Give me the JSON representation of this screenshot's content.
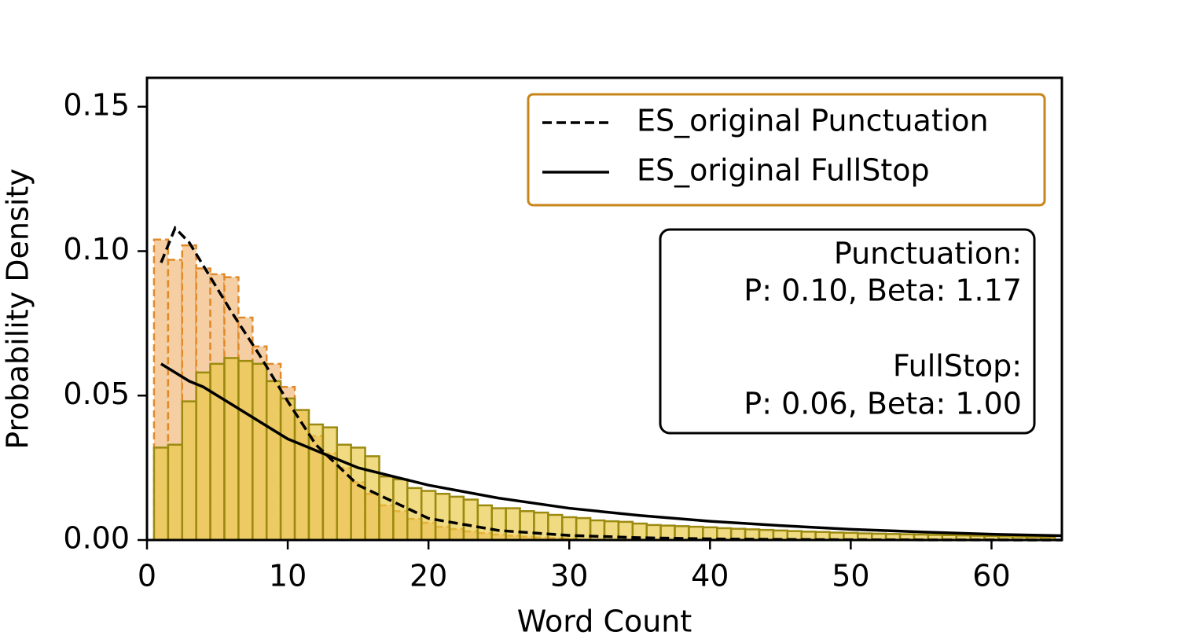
{
  "chart_data": {
    "type": "histogram",
    "xlabel": "Word Count",
    "ylabel": "Probability Density",
    "xlim": [
      0,
      65
    ],
    "ylim": [
      0,
      0.16
    ],
    "xticks": [
      0,
      10,
      20,
      30,
      40,
      50,
      60
    ],
    "yticks": [
      {
        "value": 0,
        "label": "0.00"
      },
      0.05,
      {
        "value": 0.1,
        "label": "0.10"
      },
      0.15
    ],
    "histograms": [
      {
        "color": "#f5cfa3",
        "edgecolor": "#e08a2a",
        "linestyle": "dashed",
        "alpha": 1,
        "bins": [
          0.5,
          1.5,
          2.5,
          3.5,
          4.5,
          5.5,
          6.5,
          7.5,
          8.5,
          9.5,
          10.5,
          11.5,
          12.5,
          13.5,
          14.5,
          15.5,
          16.5,
          17.5,
          18.5,
          19.5,
          20.5,
          21.5,
          22.5,
          23.5,
          24.5,
          25.5,
          26.5,
          27.5,
          28.5,
          29.5,
          30.5
        ],
        "values": [
          0.104,
          0.097,
          0.102,
          0.094,
          0.092,
          0.091,
          0.077,
          0.067,
          0.061,
          0.053,
          0.045,
          0.036,
          0.03,
          0.025,
          0.02,
          0.016,
          0.012,
          0.01,
          0.0073,
          0.006,
          0.0046,
          0.0038,
          0.003,
          0.0024,
          0.0019,
          0.0015,
          0.0012,
          0.0009,
          0.0007,
          0.0005
        ]
      },
      {
        "color": "#e8c840",
        "edgecolor": "#9c8a10",
        "linestyle": "solid",
        "alpha": 0.65,
        "bins": [
          0.5,
          1.5,
          2.5,
          3.5,
          4.5,
          5.5,
          6.5,
          7.5,
          8.5,
          9.5,
          10.5,
          11.5,
          12.5,
          13.5,
          14.5,
          15.5,
          16.5,
          17.5,
          18.5,
          19.5,
          20.5,
          21.5,
          22.5,
          23.5,
          24.5,
          25.5,
          26.5,
          27.5,
          28.5,
          29.5,
          30.5,
          31.5,
          32.5,
          33.5,
          34.5,
          35.5,
          36.5,
          37.5,
          38.5,
          39.5,
          40.5,
          41.5,
          42.5,
          43.5,
          44.5,
          45.5,
          46.5,
          47.5,
          48.5,
          49.5,
          50.5,
          51.5,
          52.5,
          53.5,
          54.5,
          55.5,
          56.5,
          57.5,
          58.5,
          59.5,
          60.5,
          61.5,
          62.5,
          63.5,
          64.5
        ],
        "values": [
          0.032,
          0.033,
          0.048,
          0.058,
          0.061,
          0.063,
          0.062,
          0.061,
          0.055,
          0.049,
          0.045,
          0.04,
          0.039,
          0.033,
          0.032,
          0.029,
          0.022,
          0.021,
          0.018,
          0.017,
          0.016,
          0.015,
          0.014,
          0.012,
          0.011,
          0.011,
          0.01,
          0.0095,
          0.0087,
          0.0079,
          0.0076,
          0.0068,
          0.0065,
          0.0063,
          0.0057,
          0.0052,
          0.005,
          0.0048,
          0.0046,
          0.0044,
          0.0041,
          0.0039,
          0.0037,
          0.0035,
          0.0033,
          0.0031,
          0.0029,
          0.0028,
          0.0026,
          0.0025,
          0.0023,
          0.0022,
          0.0021,
          0.002,
          0.0019,
          0.0018,
          0.0017,
          0.0016,
          0.0015,
          0.0014,
          0.0013,
          0.0012,
          0.0011,
          0.001
        ]
      }
    ],
    "lines": [
      {
        "name": "ES_original Punctuation",
        "color": "#000000",
        "linestyle": "dashed",
        "x": [
          1,
          2,
          3,
          4,
          5,
          6,
          8,
          10,
          12,
          15,
          20,
          25,
          30,
          35,
          40,
          45,
          50,
          55,
          60,
          65
        ],
        "values": [
          0.096,
          0.108,
          0.103,
          0.095,
          0.087,
          0.079,
          0.064,
          0.048,
          0.033,
          0.019,
          0.0075,
          0.0033,
          0.0016,
          0.0008,
          0.0004,
          0.0002,
          0.0001,
          5e-05,
          2e-05,
          1e-05
        ]
      },
      {
        "name": "ES_original FullStop",
        "color": "#000000",
        "linestyle": "solid",
        "x": [
          1,
          2,
          3,
          4,
          5,
          6,
          8,
          10,
          12,
          15,
          20,
          25,
          30,
          35,
          40,
          45,
          50,
          55,
          60,
          65
        ],
        "values": [
          0.061,
          0.058,
          0.055,
          0.053,
          0.05,
          0.047,
          0.041,
          0.035,
          0.031,
          0.025,
          0.019,
          0.0145,
          0.011,
          0.0085,
          0.0065,
          0.005,
          0.0037,
          0.0028,
          0.002,
          0.0015
        ]
      }
    ],
    "legend": "upper right",
    "legend_edgecolor": "#c8861a",
    "annotation": [
      "Punctuation:",
      "P: 0.10, Beta: 1.17",
      "FullStop:",
      "P: 0.06, Beta: 1.00"
    ]
  }
}
